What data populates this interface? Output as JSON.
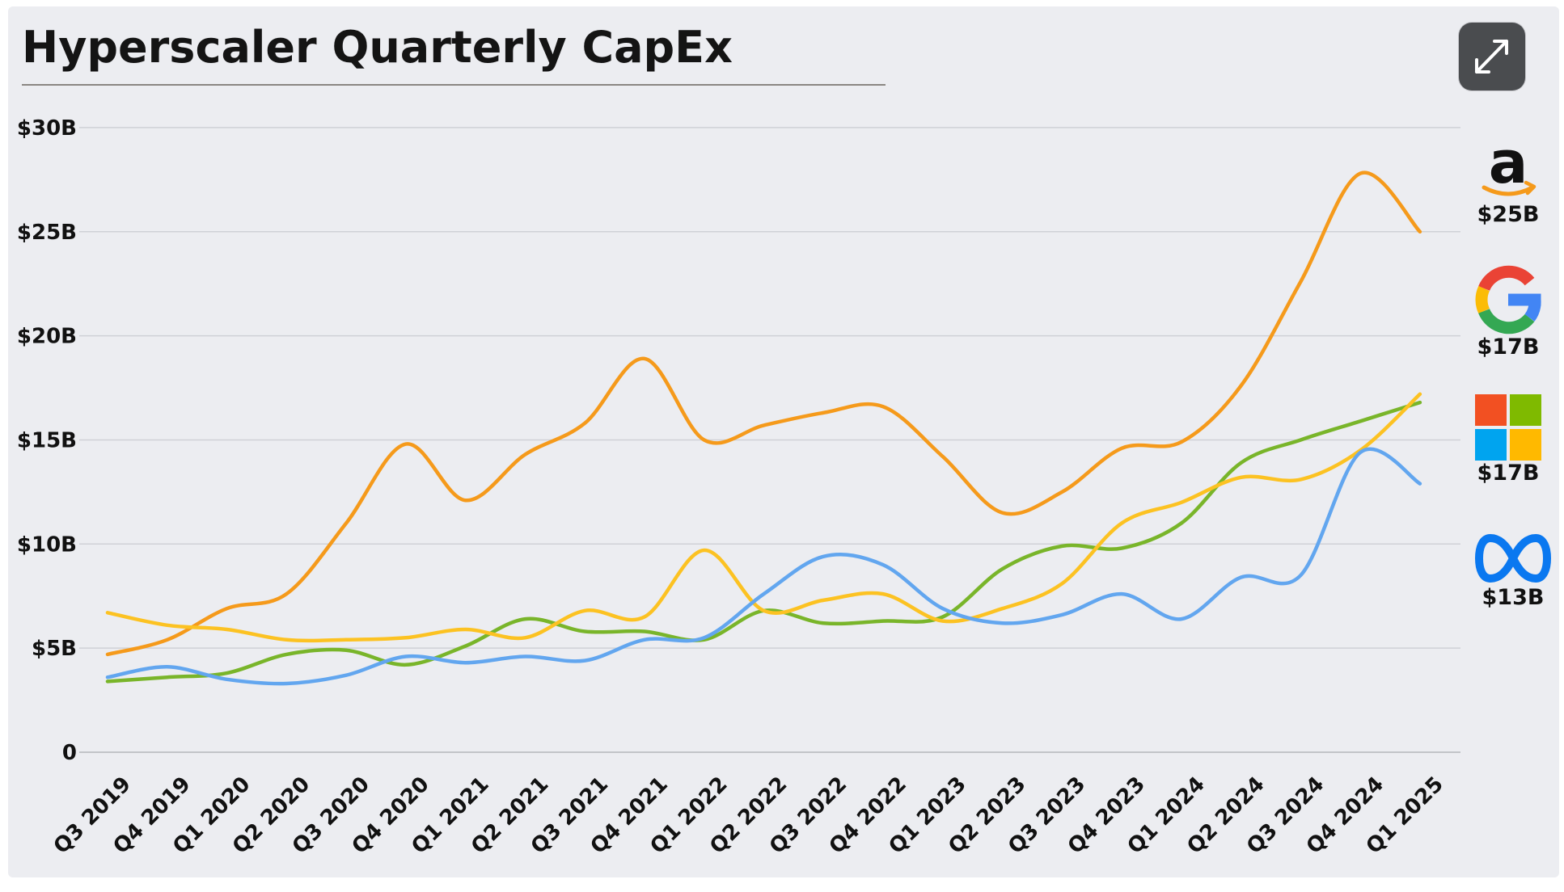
{
  "title": "Hyperscaler Quarterly CapEx",
  "colors": {
    "amazon": "#f59a1b",
    "google": "#79b52a",
    "microsoft": "#fcc222",
    "meta": "#62a6ef"
  },
  "icons": {
    "expand": "expand-arrows-icon"
  },
  "chart_data": {
    "type": "line",
    "title": "Hyperscaler Quarterly CapEx",
    "xlabel": "",
    "ylabel": "",
    "ylim": [
      0,
      30
    ],
    "yticks": [
      0,
      5,
      10,
      15,
      20,
      25,
      30
    ],
    "ytick_labels": [
      "0",
      "$5B",
      "$10B",
      "$15B",
      "$20B",
      "$25B",
      "$30B"
    ],
    "grid": true,
    "categories": [
      "Q3 2019",
      "Q4 2019",
      "Q1 2020",
      "Q2 2020",
      "Q3 2020",
      "Q4 2020",
      "Q1 2021",
      "Q2 2021",
      "Q3 2021",
      "Q4 2021",
      "Q1 2022",
      "Q2 2022",
      "Q3 2022",
      "Q4 2022",
      "Q1 2023",
      "Q2 2023",
      "Q3 2023",
      "Q4 2023",
      "Q1 2024",
      "Q2 2024",
      "Q3 2024",
      "Q4 2024",
      "Q1 2025"
    ],
    "series": [
      {
        "key": "amazon",
        "color": "#f59a1b",
        "values": [
          4.7,
          5.4,
          6.9,
          7.6,
          11.0,
          14.8,
          12.1,
          14.3,
          15.8,
          18.9,
          15.0,
          15.7,
          16.3,
          16.6,
          14.2,
          11.5,
          12.5,
          14.6,
          14.9,
          17.6,
          22.6,
          27.8,
          25.0
        ]
      },
      {
        "key": "google",
        "color": "#79b52a",
        "values": [
          3.4,
          3.6,
          3.8,
          4.7,
          4.9,
          4.2,
          5.1,
          6.4,
          5.8,
          5.8,
          5.4,
          6.8,
          6.2,
          6.3,
          6.5,
          8.8,
          9.9,
          9.8,
          11.0,
          13.9,
          15.0,
          15.9,
          16.8
        ]
      },
      {
        "key": "microsoft",
        "color": "#fcc222",
        "values": [
          6.7,
          6.1,
          5.9,
          5.4,
          5.4,
          5.5,
          5.9,
          5.5,
          6.8,
          6.5,
          9.7,
          6.8,
          7.3,
          7.6,
          6.3,
          6.9,
          8.1,
          11.0,
          12.0,
          13.2,
          13.1,
          14.5,
          17.2
        ]
      },
      {
        "key": "meta",
        "color": "#62a6ef",
        "values": [
          3.6,
          4.1,
          3.5,
          3.3,
          3.7,
          4.6,
          4.3,
          4.6,
          4.4,
          5.4,
          5.5,
          7.6,
          9.4,
          9.0,
          6.9,
          6.2,
          6.6,
          7.6,
          6.4,
          8.4,
          8.5,
          14.4,
          12.9
        ]
      }
    ],
    "legend": {
      "placement": "right",
      "items": [
        {
          "key": "amazon",
          "value_label": "$25B",
          "logo": "amazon-logo"
        },
        {
          "key": "google",
          "value_label": "$17B",
          "logo": "google-logo"
        },
        {
          "key": "microsoft",
          "value_label": "$17B",
          "logo": "microsoft-logo"
        },
        {
          "key": "meta",
          "value_label": "$13B",
          "logo": "meta-logo"
        }
      ]
    }
  }
}
